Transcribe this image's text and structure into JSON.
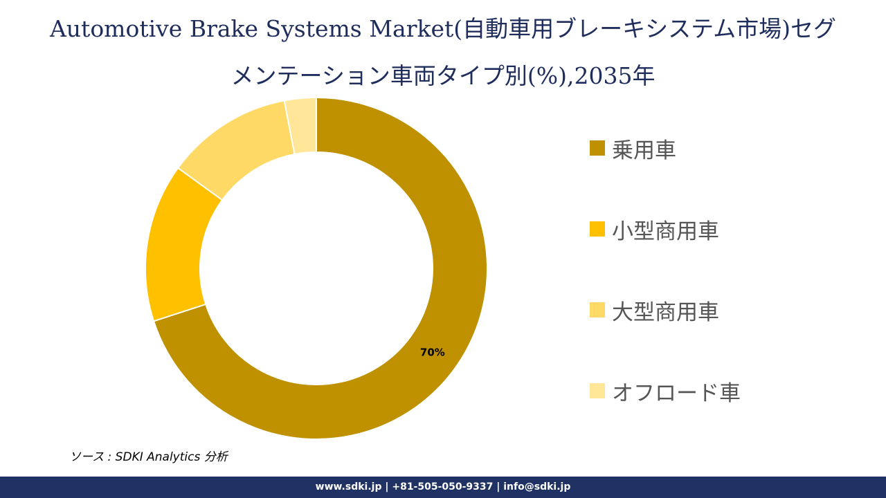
{
  "title": {
    "line1": "Automotive Brake Systems Market(自動車用ブレーキシステム市場)セグ",
    "line2": "メンテーション車両タイプ別(%),2035年"
  },
  "chart_data": {
    "type": "pie",
    "variant": "donut",
    "title": "Automotive Brake Systems Market(自動車用ブレーキシステム市場)セグメンテーション車両タイプ別(%),2035年",
    "categories": [
      "乗用車",
      "小型商用車",
      "大型商用車",
      "オフロード車"
    ],
    "values": [
      70,
      15,
      12,
      3
    ],
    "colors": [
      "#BF9000",
      "#FFC000",
      "#FFD966",
      "#FFE699"
    ],
    "data_labels": [
      "70%",
      "",
      "",
      ""
    ],
    "legend_position": "right",
    "start": "top, clockwise"
  },
  "source": "ソース : SDKI Analytics 分析",
  "footer": "www.sdki.jp | +81-505-050-9337 | info@sdki.jp"
}
